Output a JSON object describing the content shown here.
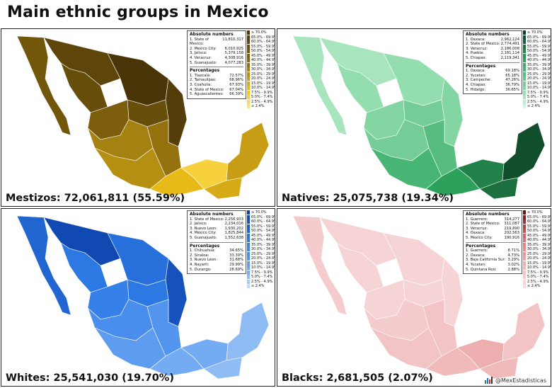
{
  "title": "Main ethnic groups in Mexico",
  "credit": "@MexEstadisticas",
  "legend_labels": [
    "≥ 70.0%",
    "65.0% - 69.9%",
    "60.0% - 64.9%",
    "55.0% - 59.9%",
    "50.0% - 54.9%",
    "45.0% - 49.9%",
    "40.0% - 44.9%",
    "35.0% - 39.9%",
    "30.0% - 34.9%",
    "25.0% - 29.9%",
    "20.0% - 24.9%",
    "15.0% - 19.9%",
    "10.0% - 14.9%",
    "7.5% - 9.9%",
    "5.0% - 7.4%",
    "2.5% - 4.9%",
    "≤ 2.4%"
  ],
  "stats_headers": {
    "absolute": "Absolute numbers",
    "percentages": "Percentages"
  },
  "panels": [
    {
      "caption": "Mestizos: 72,061,811 (55.59%)",
      "colors": {
        "dark": "#4a3508",
        "mid": "#8a6a0e",
        "light": "#f5c518",
        "palest": "#fbe27a"
      },
      "absolute": [
        {
          "label": "1. State of Mexico:",
          "value": "11,810,317"
        },
        {
          "label": "2. Mexico City:",
          "value": "6,010,925"
        },
        {
          "label": "3. Jalisco:",
          "value": "5,379,158"
        },
        {
          "label": "4. Veracruz:",
          "value": "4,308,916"
        },
        {
          "label": "5. Guanajuato:",
          "value": "4,077,283"
        }
      ],
      "percentages": [
        {
          "label": "1. Tlaxcala:",
          "value": "72.57%"
        },
        {
          "label": "2. Tamaulipas:",
          "value": "68.96%"
        },
        {
          "label": "3. Coahuila:",
          "value": "67.93%"
        },
        {
          "label": "4. State of Mexico:",
          "value": "67.04%"
        },
        {
          "label": "5. Aguascalientes:",
          "value": "66.39%"
        }
      ]
    },
    {
      "caption": "Natives: 25,075,738 (19.34%)",
      "colors": {
        "dark": "#0b3d22",
        "mid": "#2fa860",
        "light": "#8fdcab",
        "palest": "#d2f2de"
      },
      "absolute": [
        {
          "label": "1. Oaxaca:",
          "value": "2,962,124"
        },
        {
          "label": "2. State of Mexico:",
          "value": "2,774,491"
        },
        {
          "label": "3. Veracruz:",
          "value": "2,186,008"
        },
        {
          "label": "4. Puebla:",
          "value": "2,181,114"
        },
        {
          "label": "5. Chiapas:",
          "value": "2,119,341"
        }
      ],
      "percentages": [
        {
          "label": "1. Oaxaca:",
          "value": "69.18%"
        },
        {
          "label": "2. Yucatan:",
          "value": "65.18%"
        },
        {
          "label": "3. Campeche:",
          "value": "47.26%"
        },
        {
          "label": "4. Chiapas:",
          "value": "36.79%"
        },
        {
          "label": "5. Hidalgo:",
          "value": "36.65%"
        }
      ]
    },
    {
      "caption": "Whites: 25,541,030 (19.70%)",
      "colors": {
        "dark": "#0a3fa8",
        "mid": "#2f7de8",
        "light": "#6fa8f2",
        "palest": "#c7dcfb"
      },
      "absolute": [
        {
          "label": "1. State of Mexico:",
          "value": "2,256,933"
        },
        {
          "label": "2. Jalisco:",
          "value": "2,234,016"
        },
        {
          "label": "3. Nuevo Leon:",
          "value": "1,930,202"
        },
        {
          "label": "4. Mexico City:",
          "value": "1,825,844"
        },
        {
          "label": "5. Guanajuato:",
          "value": "1,552,638"
        }
      ],
      "percentages": [
        {
          "label": "1. Chihuahua:",
          "value": "34.65%"
        },
        {
          "label": "2. Sinaloa:",
          "value": "33.39%"
        },
        {
          "label": "3. Nuevo Leon:",
          "value": "31.68%"
        },
        {
          "label": "4. Nayarit:",
          "value": "29.99%"
        },
        {
          "label": "5. Durango:",
          "value": "28.69%"
        }
      ]
    },
    {
      "caption": "Blacks: 2,681,505 (2.07%)",
      "colors": {
        "dark": "#6b1012",
        "mid": "#e07c7e",
        "light": "#f2c2c3",
        "palest": "#f8dcdd"
      },
      "absolute": [
        {
          "label": "1. Guerrero:",
          "value": "314,277"
        },
        {
          "label": "2. State of Mexico:",
          "value": "311,087"
        },
        {
          "label": "3. Veracruz:",
          "value": "219,890"
        },
        {
          "label": "4. Oaxaca:",
          "value": "202,563"
        },
        {
          "label": "5. Mexico City:",
          "value": "190,916"
        }
      ],
      "percentages": [
        {
          "label": "1. Guerrero:",
          "value": "8.71%"
        },
        {
          "label": "2. Oaxaca:",
          "value": "4.73%"
        },
        {
          "label": "3. Baja California Sur:",
          "value": "3.29%"
        },
        {
          "label": "4. Yucatan:",
          "value": "3.02%"
        },
        {
          "label": "5. Quintana Roo:",
          "value": "2.88%"
        }
      ]
    }
  ]
}
